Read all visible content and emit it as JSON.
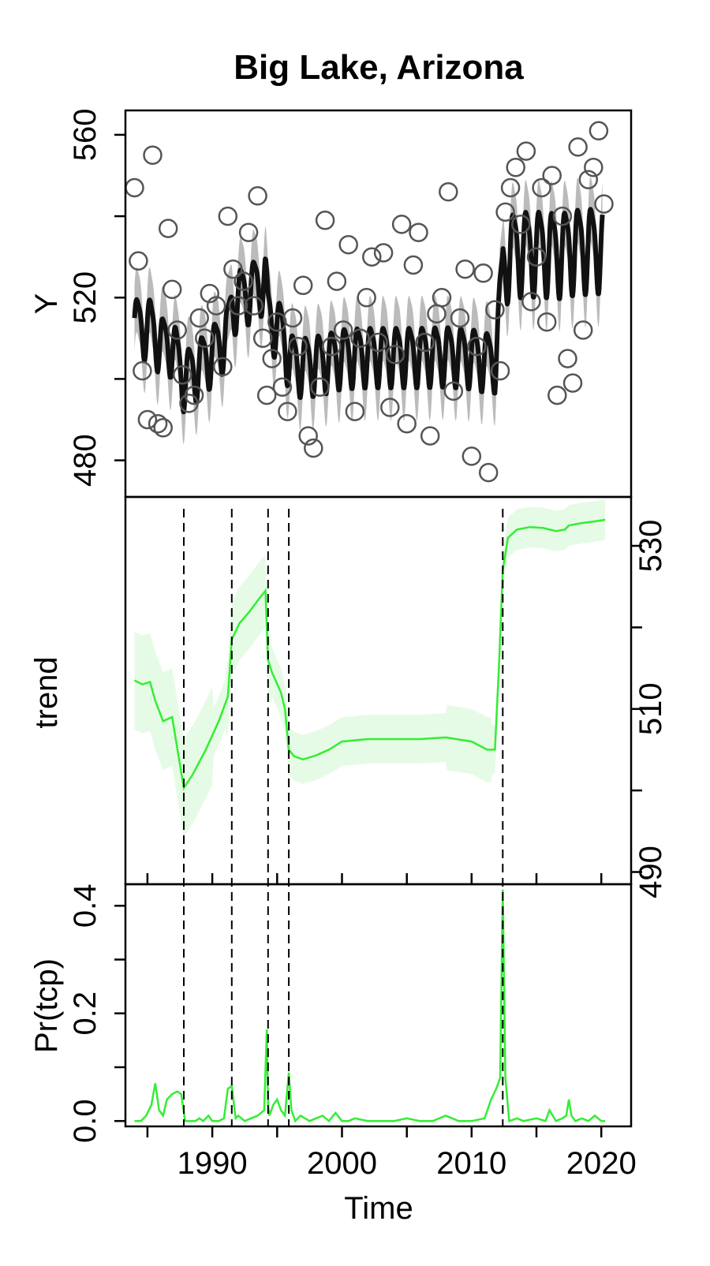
{
  "chart_data": {
    "type": "line",
    "title": "Big Lake, Arizona",
    "xlabel": "Time",
    "xlim": [
      1983.3,
      2022.3
    ],
    "x_ticks": [
      1990,
      2000,
      2010,
      2020
    ],
    "x_ticks_minor": [
      1985,
      1995,
      2005,
      2015
    ],
    "changepoints": [
      1987.8,
      1991.5,
      1994.3,
      1995.9,
      2012.4
    ],
    "colors": {
      "observed": "#555555",
      "fit": "#111111",
      "fit_band": "#bbbbbb",
      "trend": "#33ee33",
      "trend_band": "#e6fbe6",
      "changepoint": "#000000"
    },
    "panels": [
      {
        "name": "Y",
        "ylabel": "Y",
        "y_axis_side": "left",
        "ylim": [
          471,
          566
        ],
        "y_ticks": [
          "480",
          "520",
          "560"
        ],
        "y_ticks_minor": [
          500,
          540
        ],
        "series": [
          {
            "kind": "points",
            "marker": "open-circle",
            "x": [
              1984.0,
              1984.3,
              1984.6,
              1985.0,
              1985.4,
              1985.8,
              1986.2,
              1986.6,
              1986.9,
              1987.3,
              1987.7,
              1988.2,
              1988.6,
              1989.0,
              1989.4,
              1989.8,
              1990.3,
              1990.8,
              1991.2,
              1991.6,
              1992.0,
              1992.4,
              1992.8,
              1993.2,
              1993.5,
              1993.9,
              1994.2,
              1994.6,
              1995.0,
              1995.4,
              1995.8,
              1996.2,
              1996.6,
              1997.0,
              1997.4,
              1997.8,
              1998.3,
              1998.7,
              1999.2,
              1999.6,
              2000.1,
              2000.5,
              2001.0,
              2001.4,
              2001.9,
              2002.3,
              2002.8,
              2003.2,
              2003.7,
              2004.1,
              2004.6,
              2005.0,
              2005.5,
              2005.9,
              2006.4,
              2006.8,
              2007.3,
              2007.7,
              2008.2,
              2008.6,
              2009.1,
              2009.5,
              2010.0,
              2010.4,
              2010.9,
              2011.3,
              2011.8,
              2012.2,
              2012.6,
              2013.0,
              2013.4,
              2013.8,
              2014.2,
              2014.6,
              2015.0,
              2015.4,
              2015.8,
              2016.2,
              2016.6,
              2017.0,
              2017.4,
              2017.8,
              2018.2,
              2018.6,
              2019.0,
              2019.4,
              2019.8,
              2020.2
            ],
            "y": [
              547,
              529,
              502,
              490,
              555,
              489,
              488,
              537,
              522,
              512,
              501,
              494,
              496,
              515,
              510,
              521,
              518,
              503,
              540,
              527,
              518,
              524,
              536,
              518,
              545,
              510,
              496,
              505,
              514,
              498,
              492,
              515,
              508,
              523,
              486,
              483,
              498,
              539,
              508,
              524,
              512,
              533,
              492,
              510,
              520,
              530,
              509,
              531,
              493,
              506,
              538,
              489,
              528,
              536,
              509,
              486,
              516,
              520,
              546,
              497,
              515,
              527,
              481,
              508,
              526,
              477,
              517,
              502,
              541,
              547,
              552,
              538,
              556,
              519,
              530,
              547,
              514,
              550,
              496,
              540,
              505,
              499,
              557,
              512,
              549,
              552,
              561,
              543
            ]
          },
          {
            "kind": "line",
            "name": "",
            "x": [
              1984.0,
              2020.1
            ]
          },
          {
            "kind": "band",
            "x": [
              1984.0,
              2020.1
            ]
          }
        ]
      },
      {
        "name": "trend",
        "ylabel": "trend",
        "y_axis_side": "right",
        "ylim": [
          488.5,
          536
        ],
        "y_ticks": [
          "490",
          "510",
          "530"
        ],
        "y_ticks_minor": [
          500,
          520
        ],
        "series": [
          {
            "kind": "line",
            "x": [
              1984.0,
              1984.6,
              1985.2,
              1985.6,
              1986.2,
              1986.9,
              1987.8,
              1988.5,
              1989.5,
              1990.5,
              1991.2,
              1991.5,
              1992.1,
              1992.9,
              1993.6,
              1994.1,
              1994.3,
              1994.6,
              1995.3,
              1995.6,
              1995.9,
              1996.3,
              1997.0,
              1998.0,
              1999.0,
              2000.0,
              2002.0,
              2004.0,
              2006.0,
              2008.0,
              2010.0,
              2011.2,
              2011.8,
              2012.1,
              2012.4,
              2012.8,
              2013.5,
              2014.5,
              2015.5,
              2016.5,
              2017.2,
              2017.5,
              2018.5,
              2019.5,
              2020.3
            ],
            "y": [
              513.5,
              513.0,
              513.3,
              511.0,
              508.5,
              509.0,
              500.3,
              502.0,
              505.0,
              508.5,
              511.5,
              518.5,
              520.5,
              522.0,
              523.5,
              524.5,
              516.0,
              514.5,
              512.0,
              510.0,
              505.0,
              504.2,
              503.8,
              504.3,
              505.0,
              506.0,
              506.3,
              506.3,
              506.3,
              506.5,
              506.0,
              505.0,
              505.0,
              515.0,
              527.0,
              531.0,
              532.0,
              532.3,
              532.2,
              531.8,
              532.0,
              532.5,
              532.8,
              533.0,
              533.2
            ]
          },
          {
            "kind": "band"
          }
        ]
      },
      {
        "name": "Pr(tcp)",
        "ylabel": "Pr(tcp)",
        "y_axis_side": "left",
        "ylim": [
          -0.01,
          0.44
        ],
        "y_ticks": [
          "0.0",
          "0.2",
          "0.4"
        ],
        "y_ticks_minor": [
          0.1,
          0.3
        ],
        "series": [
          {
            "kind": "line",
            "x": [
              1984.0,
              1984.5,
              1984.9,
              1985.3,
              1985.6,
              1985.9,
              1986.2,
              1986.5,
              1986.9,
              1987.3,
              1987.6,
              1987.9,
              1988.2,
              1988.7,
              1989.0,
              1989.3,
              1989.7,
              1990.0,
              1990.5,
              1990.9,
              1991.2,
              1991.5,
              1991.8,
              1992.0,
              1992.5,
              1993.0,
              1993.5,
              1994.0,
              1994.2,
              1994.3,
              1994.4,
              1994.7,
              1995.0,
              1995.3,
              1995.6,
              1995.9,
              1996.1,
              1996.4,
              1996.8,
              1997.5,
              1998.0,
              1998.5,
              1999.0,
              1999.5,
              2000.0,
              2000.5,
              2001.0,
              2002.0,
              2003.0,
              2004.0,
              2005.0,
              2006.0,
              2007.0,
              2008.0,
              2009.0,
              2010.0,
              2011.0,
              2011.5,
              2011.9,
              2012.2,
              2012.4,
              2012.6,
              2012.9,
              2013.5,
              2014.0,
              2015.0,
              2015.7,
              2016.0,
              2016.5,
              2017.0,
              2017.3,
              2017.5,
              2017.7,
              2018.0,
              2018.5,
              2019.0,
              2019.5,
              2020.0,
              2020.3
            ],
            "y": [
              0.0,
              0.0,
              0.01,
              0.03,
              0.07,
              0.02,
              0.01,
              0.04,
              0.05,
              0.055,
              0.05,
              0.0,
              0.0,
              0.0,
              0.005,
              0.0,
              0.01,
              0.0,
              0.0,
              0.005,
              0.06,
              0.065,
              0.005,
              0.01,
              0.0,
              0.005,
              0.01,
              0.02,
              0.17,
              0.03,
              0.01,
              0.03,
              0.04,
              0.02,
              0.01,
              0.09,
              0.02,
              0.0,
              0.01,
              0.0,
              0.005,
              0.01,
              0.0,
              0.015,
              0.0,
              0.0,
              0.005,
              0.0,
              0.0,
              0.0,
              0.005,
              0.0,
              0.0,
              0.01,
              0.0,
              0.0,
              0.005,
              0.04,
              0.06,
              0.08,
              0.43,
              0.08,
              0.0,
              0.005,
              0.0,
              0.005,
              0.0,
              0.02,
              0.0,
              0.005,
              0.01,
              0.04,
              0.01,
              0.0,
              0.005,
              0.0,
              0.01,
              0.0,
              0.0
            ]
          }
        ]
      }
    ]
  }
}
